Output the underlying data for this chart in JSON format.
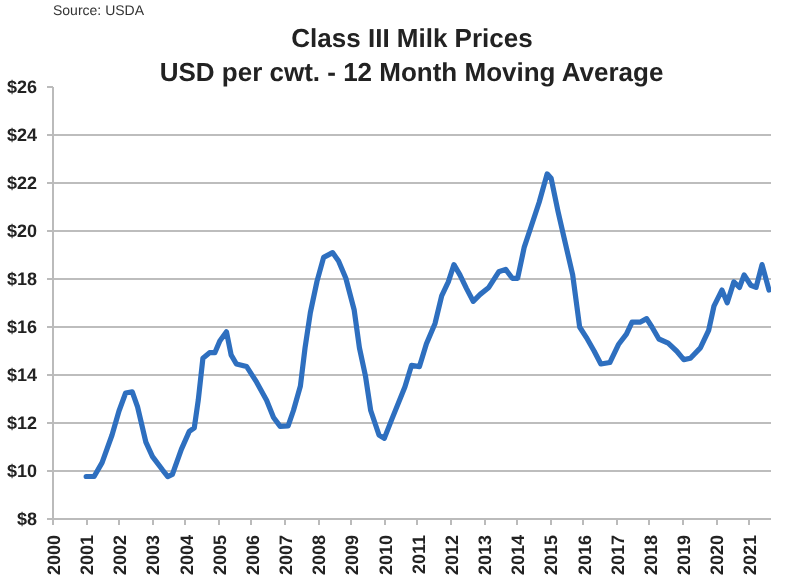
{
  "chart_data": {
    "type": "line",
    "title": "Class III Milk Prices",
    "subtitle": "USD per cwt. - 12 Month Moving Average",
    "annotations": [
      "Source: USDA"
    ],
    "x": [
      2001.0,
      2001.24,
      2001.48,
      2001.78,
      2001.99,
      2002.19,
      2002.39,
      2002.55,
      2002.8,
      2003.0,
      2003.3,
      2003.46,
      2003.6,
      2003.87,
      2004.11,
      2004.26,
      2004.38,
      2004.52,
      2004.72,
      2004.88,
      2005.03,
      2005.23,
      2005.37,
      2005.53,
      2005.84,
      2006.14,
      2006.44,
      2006.65,
      2006.85,
      2007.09,
      2007.25,
      2007.46,
      2007.6,
      2007.76,
      2007.96,
      2008.16,
      2008.43,
      2008.61,
      2008.83,
      2009.08,
      2009.24,
      2009.42,
      2009.58,
      2009.83,
      2009.99,
      2010.2,
      2010.61,
      2010.81,
      2011.05,
      2011.26,
      2011.52,
      2011.72,
      2011.92,
      2012.09,
      2012.27,
      2012.47,
      2012.67,
      2012.88,
      2013.14,
      2013.44,
      2013.65,
      2013.85,
      2014.01,
      2014.21,
      2014.42,
      2014.66,
      2014.9,
      2015.02,
      2015.23,
      2015.43,
      2015.67,
      2015.88,
      2016.08,
      2016.32,
      2016.52,
      2016.79,
      2017.05,
      2017.29,
      2017.46,
      2017.7,
      2017.9,
      2018.06,
      2018.27,
      2018.55,
      2018.81,
      2019.02,
      2019.22,
      2019.52,
      2019.77,
      2019.93,
      2020.17,
      2020.33,
      2020.53,
      2020.7,
      2020.84,
      2021.04,
      2021.2,
      2021.38,
      2021.59
    ],
    "series": [
      {
        "color": "#2e6fbf",
        "values": [
          9.77,
          9.77,
          10.35,
          11.5,
          12.5,
          13.25,
          13.3,
          12.67,
          11.2,
          10.6,
          10.05,
          9.77,
          9.86,
          10.9,
          11.65,
          11.8,
          12.95,
          14.7,
          14.93,
          14.93,
          15.42,
          15.8,
          14.84,
          14.46,
          14.35,
          13.7,
          12.95,
          12.23,
          11.86,
          11.88,
          12.52,
          13.54,
          15.13,
          16.6,
          17.9,
          18.9,
          19.1,
          18.75,
          18.03,
          16.72,
          15.13,
          13.97,
          12.52,
          11.5,
          11.36,
          12.1,
          13.5,
          14.4,
          14.35,
          15.3,
          16.15,
          17.3,
          17.88,
          18.6,
          18.17,
          17.6,
          17.07,
          17.36,
          17.65,
          18.3,
          18.4,
          18.03,
          18.03,
          19.33,
          20.2,
          21.2,
          22.38,
          22.2,
          20.8,
          19.6,
          18.17,
          16.0,
          15.57,
          14.99,
          14.46,
          14.52,
          15.27,
          15.7,
          16.2,
          16.2,
          16.35,
          16.0,
          15.5,
          15.33,
          14.99,
          14.64,
          14.7,
          15.13,
          15.86,
          16.87,
          17.54,
          17.01,
          17.88,
          17.65,
          18.17,
          17.74,
          17.65,
          18.6,
          17.54
        ]
      }
    ],
    "xlim": [
      2000,
      2021.65
    ],
    "xticks": [
      2000,
      2001,
      2002,
      2003,
      2004,
      2005,
      2006,
      2007,
      2008,
      2009,
      2010,
      2011,
      2012,
      2013,
      2014,
      2015,
      2016,
      2017,
      2018,
      2019,
      2020,
      2021
    ],
    "ylim": [
      8,
      26
    ],
    "yticks": [
      {
        "value": 8,
        "label": "$8"
      },
      {
        "value": 10,
        "label": "$10"
      },
      {
        "value": 12,
        "label": "$12"
      },
      {
        "value": 14,
        "label": "$14"
      },
      {
        "value": 16,
        "label": "$16"
      },
      {
        "value": 18,
        "label": "$18"
      },
      {
        "value": 20,
        "label": "$20"
      },
      {
        "value": 22,
        "label": "$22"
      },
      {
        "value": 24,
        "label": "$24"
      },
      {
        "value": 26,
        "label": "$26"
      }
    ],
    "grid": "y",
    "marker": "none",
    "line_style": "solid"
  }
}
